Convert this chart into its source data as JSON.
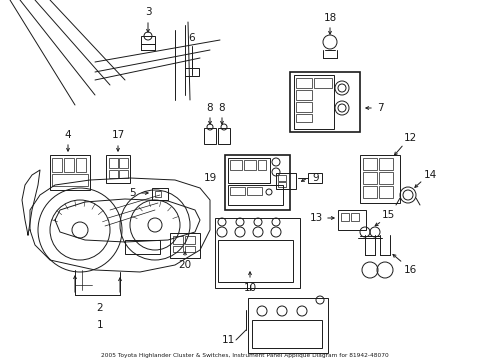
{
  "title": "2005 Toyota Highlander Cluster & Switches, Instrument Panel Applique Diagram for 81942-48070",
  "bg_color": "#ffffff",
  "line_color": "#1a1a1a",
  "fig_width": 4.89,
  "fig_height": 3.6,
  "dpi": 100,
  "label_fontsize": 7.5,
  "title_fontsize": 4.2
}
